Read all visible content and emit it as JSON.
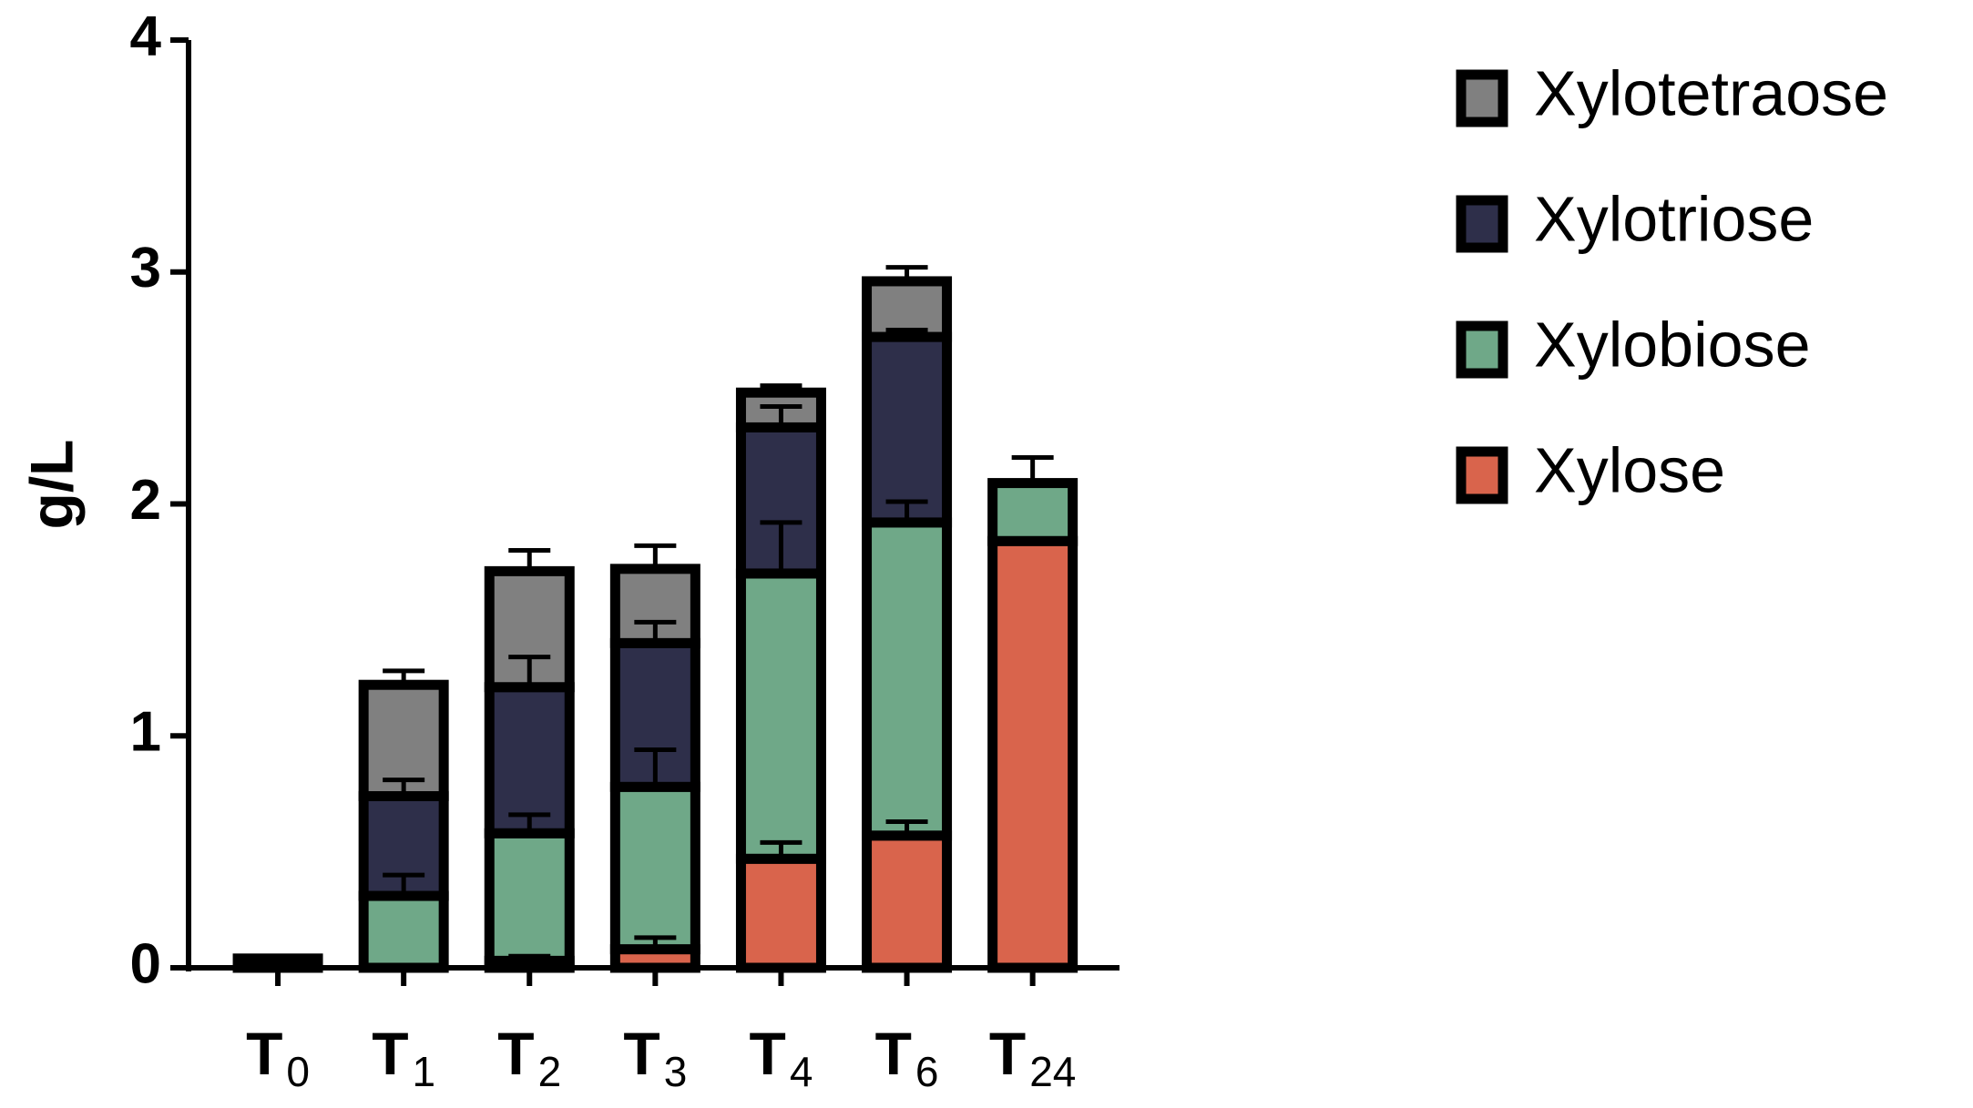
{
  "chart_data": {
    "type": "stacked_bar",
    "y_label": "g/L",
    "categories": [
      "T0",
      "T1",
      "T2",
      "T3",
      "T4",
      "T6",
      "T24"
    ],
    "series": [
      {
        "name": "Xylose",
        "color": "#d9644c",
        "values": [
          0,
          0,
          0.03,
          0.08,
          0.47,
          0.57,
          1.84
        ],
        "errors": [
          null,
          null,
          0.02,
          0.05,
          0.07,
          0.06,
          null
        ]
      },
      {
        "name": "Xylobiose",
        "color": "#6fa888",
        "values": [
          0.04,
          0.31,
          0.55,
          0.7,
          1.23,
          1.35,
          0.25
        ],
        "errors": [
          null,
          0.09,
          0.08,
          0.16,
          0.22,
          0.09,
          0.11
        ]
      },
      {
        "name": "Xylotriose",
        "color": "#2e2f4a",
        "values": [
          0,
          0.43,
          0.63,
          0.62,
          0.63,
          0.8,
          0
        ],
        "errors": [
          null,
          0.07,
          0.13,
          0.09,
          0.09,
          0.03,
          null
        ]
      },
      {
        "name": "Xylotetraose",
        "color": "#808080",
        "values": [
          0,
          0.48,
          0.5,
          0.32,
          0.15,
          0.24,
          0
        ],
        "errors": [
          null,
          0.06,
          0.09,
          0.1,
          0.03,
          0.06,
          null
        ]
      }
    ],
    "ylim": [
      0,
      4
    ],
    "yticks": [
      0,
      1,
      2,
      3,
      4
    ],
    "grid": false,
    "legend": "right"
  }
}
